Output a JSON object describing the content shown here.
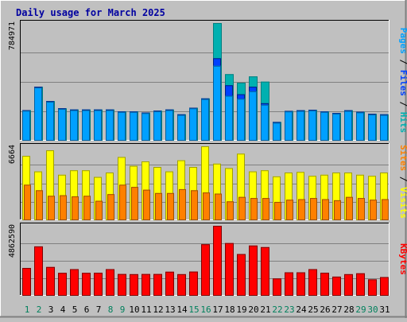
{
  "title": "Daily usage for March 2025",
  "colors": {
    "hits": "#00b0b0",
    "files": "#0040ff",
    "pages": "#00a0ff",
    "visits": "#ffff00",
    "sites": "#ff8000",
    "kbytes": "#ff0000",
    "weekday_label": "#000000",
    "weekend_label": "#00805c",
    "title": "#0000a0",
    "plot_bg": "#c0c0c0",
    "grid": "#808080"
  },
  "chart_data": [
    {
      "type": "bar",
      "panel": "hits-files-pages",
      "ymax_label": "784971",
      "ylim": [
        0,
        784971
      ],
      "legend": [
        {
          "text": "Pages",
          "color": "#00a0ff"
        },
        {
          "text": " / ",
          "color": "#000000"
        },
        {
          "text": "Files",
          "color": "#0040ff"
        },
        {
          "text": " / ",
          "color": "#000000"
        },
        {
          "text": "Hits",
          "color": "#00b0b0"
        }
      ],
      "categories": [
        "1",
        "2",
        "3",
        "4",
        "5",
        "6",
        "7",
        "8",
        "9",
        "10",
        "11",
        "12",
        "13",
        "14",
        "15",
        "16",
        "17",
        "18",
        "19",
        "20",
        "21",
        "22",
        "23",
        "24",
        "25",
        "26",
        "27",
        "28",
        "29",
        "30",
        "31"
      ],
      "series": [
        {
          "name": "Hits",
          "values": [
            204000,
            360000,
            264000,
            216000,
            208000,
            208000,
            208000,
            208000,
            196000,
            196000,
            188000,
            200000,
            208000,
            176000,
            220000,
            282000,
            784971,
            444000,
            387000,
            429000,
            394000,
            125000,
            199000,
            203000,
            206000,
            196000,
            185000,
            203000,
            193000,
            179000,
            176000
          ]
        },
        {
          "name": "Files",
          "values": [
            204000,
            360000,
            264000,
            216000,
            208000,
            208000,
            208000,
            208000,
            196000,
            196000,
            188000,
            200000,
            208000,
            176000,
            220000,
            282000,
            550000,
            370000,
            310000,
            360000,
            250000,
            125000,
            199000,
            203000,
            206000,
            196000,
            185000,
            203000,
            193000,
            179000,
            176000
          ]
        },
        {
          "name": "Pages",
          "values": [
            200000,
            355000,
            260000,
            212000,
            204000,
            204000,
            204000,
            204000,
            192000,
            192000,
            184000,
            196000,
            204000,
            172000,
            216000,
            278000,
            500000,
            300000,
            280000,
            330000,
            240000,
            120000,
            195000,
            199000,
            202000,
            192000,
            181000,
            199000,
            189000,
            175000,
            172000
          ]
        }
      ]
    },
    {
      "type": "bar",
      "panel": "visits-sites",
      "ymax_label": "6664",
      "ylim": [
        0,
        6664
      ],
      "legend": [
        {
          "text": "Sites",
          "color": "#ff8000"
        },
        {
          "text": " / ",
          "color": "#000000"
        },
        {
          "text": "Visits",
          "color": "#ffff00"
        }
      ],
      "categories": [
        "1",
        "2",
        "3",
        "4",
        "5",
        "6",
        "7",
        "8",
        "9",
        "10",
        "11",
        "12",
        "13",
        "14",
        "15",
        "16",
        "17",
        "18",
        "19",
        "20",
        "21",
        "22",
        "23",
        "24",
        "25",
        "26",
        "27",
        "28",
        "29",
        "30",
        "31"
      ],
      "series": [
        {
          "name": "Visits",
          "values": [
            5800,
            4400,
            6300,
            4100,
            4500,
            4500,
            3900,
            4300,
            5700,
            4900,
            5300,
            4800,
            4400,
            5400,
            4800,
            6664,
            5100,
            4700,
            6000,
            4400,
            4500,
            3950,
            4300,
            4350,
            4000,
            4100,
            4300,
            4300,
            4100,
            4000,
            4300
          ]
        },
        {
          "name": "Sites",
          "values": [
            3200,
            2700,
            2200,
            2250,
            2150,
            2200,
            1750,
            2350,
            3200,
            3000,
            2750,
            2450,
            2450,
            2800,
            2700,
            2500,
            2400,
            1700,
            2100,
            2000,
            2000,
            1650,
            1850,
            1900,
            2000,
            1900,
            1800,
            2100,
            2000,
            1850,
            1900
          ]
        }
      ]
    },
    {
      "type": "bar",
      "panel": "kbytes",
      "ymax_label": "4862590",
      "ylim": [
        0,
        4862590
      ],
      "legend": [
        {
          "text": "KBytes",
          "color": "#ff0000"
        }
      ],
      "categories": [
        "1",
        "2",
        "3",
        "4",
        "5",
        "6",
        "7",
        "8",
        "9",
        "10",
        "11",
        "12",
        "13",
        "14",
        "15",
        "16",
        "17",
        "18",
        "19",
        "20",
        "21",
        "22",
        "23",
        "24",
        "25",
        "26",
        "27",
        "28",
        "29",
        "30",
        "31"
      ],
      "series": [
        {
          "name": "KBytes",
          "values": [
            1930000,
            3430000,
            2000000,
            1590000,
            1850000,
            1590000,
            1600000,
            1850000,
            1510000,
            1500000,
            1510000,
            1510000,
            1670000,
            1500000,
            1680000,
            3580000,
            4862590,
            3660000,
            2900000,
            3490000,
            3380000,
            1200000,
            1630000,
            1630000,
            1850000,
            1600000,
            1330000,
            1500000,
            1560000,
            1140000,
            1300000
          ]
        }
      ]
    }
  ],
  "weekend_days": [
    1,
    2,
    8,
    9,
    15,
    16,
    22,
    23,
    29,
    30
  ]
}
